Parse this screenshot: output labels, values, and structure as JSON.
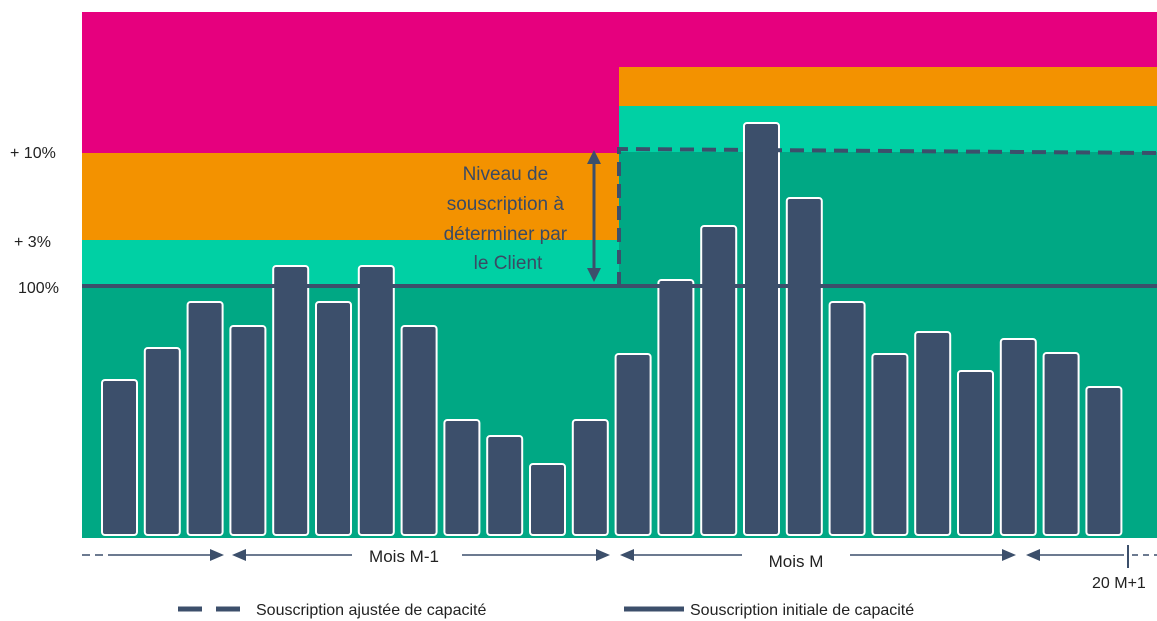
{
  "colors": {
    "magenta": "#e6007e",
    "orange": "#f39200",
    "light_teal": "#00d0a4",
    "dark_teal": "#00a884",
    "bar": "#3c4f6b",
    "bar_stroke": "#ffffff",
    "line": "#3c4f6b"
  },
  "y_labels": {
    "plus10": "+ 10%",
    "plus3": "+ 3%",
    "hundred": "100%"
  },
  "annotation": {
    "lines": [
      "Niveau de",
      "souscription à",
      "déterminer par",
      "le Client"
    ]
  },
  "periods": {
    "prev_month": "Mois M-1",
    "month": "Mois M",
    "next_label": "20 M+1"
  },
  "legend": {
    "dashed": "Souscription ajustée de capacité",
    "solid": "Souscription initiale de capacité"
  },
  "chart_data": {
    "type": "bar",
    "bar_values": [
      155,
      187,
      233,
      209,
      269,
      233,
      269,
      209,
      115,
      99,
      71,
      115,
      181,
      255,
      309,
      412,
      337,
      233,
      181,
      203,
      164,
      196,
      182,
      148
    ],
    "scale_note": "values relative to 100% level = 250"
  }
}
